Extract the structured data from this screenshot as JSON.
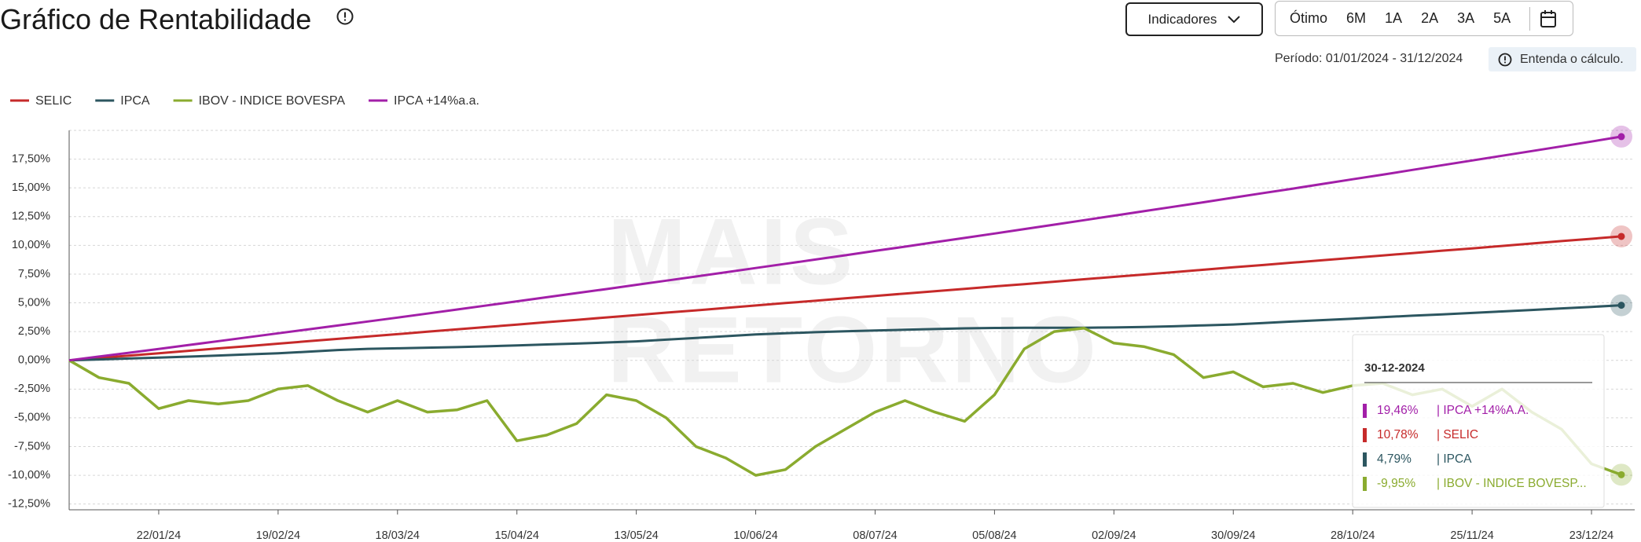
{
  "header": {
    "title": "Gráfico de Rentabilidade",
    "dropdown": "Indicadores",
    "periods": [
      "Ótimo",
      "6M",
      "1A",
      "2A",
      "3A",
      "5A"
    ],
    "period_range": "Período: 01/01/2024 - 31/12/2024",
    "help": "Entenda o cálculo."
  },
  "chart_data": {
    "type": "line",
    "watermark": [
      "MAIS",
      "RETORNO"
    ],
    "x": [
      "01/01/24",
      "08/01/24",
      "15/01/24",
      "22/01/24",
      "29/01/24",
      "05/02/24",
      "12/02/24",
      "19/02/24",
      "26/02/24",
      "04/03/24",
      "11/03/24",
      "18/03/24",
      "25/03/24",
      "01/04/24",
      "08/04/24",
      "15/04/24",
      "22/04/24",
      "29/04/24",
      "06/05/24",
      "13/05/24",
      "20/05/24",
      "27/05/24",
      "03/06/24",
      "10/06/24",
      "17/06/24",
      "24/06/24",
      "01/07/24",
      "08/07/24",
      "15/07/24",
      "22/07/24",
      "29/07/24",
      "05/08/24",
      "12/08/24",
      "19/08/24",
      "26/08/24",
      "02/09/24",
      "09/09/24",
      "16/09/24",
      "23/09/24",
      "30/09/24",
      "07/10/24",
      "14/10/24",
      "21/10/24",
      "28/10/24",
      "04/11/24",
      "11/11/24",
      "18/11/24",
      "25/11/24",
      "02/12/24",
      "09/12/24",
      "16/12/24",
      "23/12/24",
      "30/12/24"
    ],
    "xlim": [
      "01/01/24",
      "30/12/24"
    ],
    "xticks": [
      "22/01/24",
      "19/02/24",
      "18/03/24",
      "15/04/24",
      "13/05/24",
      "10/06/24",
      "08/07/24",
      "05/08/24",
      "02/09/24",
      "30/09/24",
      "28/10/24",
      "25/11/24",
      "23/12/24"
    ],
    "ylim": [
      -13,
      20
    ],
    "yticks": [
      {
        "value": 17.5,
        "label": "17,50%"
      },
      {
        "value": 15,
        "label": "15,00%"
      },
      {
        "value": 12.5,
        "label": "12,50%"
      },
      {
        "value": 10,
        "label": "10,00%"
      },
      {
        "value": 7.5,
        "label": "7,50%"
      },
      {
        "value": 5,
        "label": "5,00%"
      },
      {
        "value": 2.5,
        "label": "2,50%"
      },
      {
        "value": 0,
        "label": "0,00%"
      },
      {
        "value": -2.5,
        "label": "-2,50%"
      },
      {
        "value": -5,
        "label": "-5,00%"
      },
      {
        "value": -7.5,
        "label": "-7,50%"
      },
      {
        "value": -10,
        "label": "-10,00%"
      },
      {
        "value": -12.5,
        "label": "-12,50%"
      }
    ],
    "grid": true,
    "series": [
      {
        "name": "SELIC",
        "color": "#c62a2a",
        "values": [
          0,
          0.21,
          0.41,
          0.62,
          0.83,
          1.04,
          1.24,
          1.45,
          1.66,
          1.87,
          2.07,
          2.28,
          2.49,
          2.7,
          2.9,
          3.11,
          3.32,
          3.52,
          3.73,
          3.94,
          4.15,
          4.35,
          4.56,
          4.77,
          4.98,
          5.18,
          5.39,
          5.6,
          5.81,
          6.01,
          6.22,
          6.43,
          6.63,
          6.84,
          7.05,
          7.26,
          7.46,
          7.67,
          7.88,
          8.09,
          8.29,
          8.5,
          8.71,
          8.91,
          9.12,
          9.33,
          9.54,
          9.74,
          9.95,
          10.16,
          10.37,
          10.57,
          10.78
        ]
      },
      {
        "name": "IPCA",
        "color": "#2c5660",
        "values": [
          0,
          0.08,
          0.16,
          0.24,
          0.32,
          0.42,
          0.52,
          0.62,
          0.75,
          0.9,
          1.0,
          1.05,
          1.1,
          1.15,
          1.22,
          1.3,
          1.38,
          1.46,
          1.55,
          1.65,
          1.8,
          1.95,
          2.1,
          2.25,
          2.35,
          2.45,
          2.52,
          2.6,
          2.66,
          2.72,
          2.78,
          2.82,
          2.84,
          2.84,
          2.84,
          2.86,
          2.9,
          2.96,
          3.04,
          3.12,
          3.25,
          3.38,
          3.5,
          3.62,
          3.75,
          3.88,
          4.0,
          4.12,
          4.25,
          4.38,
          4.52,
          4.65,
          4.79
        ]
      },
      {
        "name": "IBOV - INDICE BOVESPA",
        "color": "#8aab2f",
        "values": [
          0,
          -1.5,
          -2.0,
          -4.2,
          -3.5,
          -3.8,
          -3.5,
          -2.5,
          -2.2,
          -3.5,
          -4.5,
          -3.5,
          -4.5,
          -4.3,
          -3.5,
          -7.0,
          -6.5,
          -5.5,
          -3.0,
          -3.5,
          -5.0,
          -7.5,
          -8.5,
          -10.0,
          -9.5,
          -7.5,
          -6.0,
          -4.5,
          -3.5,
          -4.5,
          -5.3,
          -3.0,
          1.0,
          2.5,
          2.8,
          1.5,
          1.2,
          0.5,
          -1.5,
          -1.0,
          -2.3,
          -2.0,
          -2.8,
          -2.2,
          -2.0,
          -3.0,
          -2.5,
          -4.0,
          -2.5,
          -4.5,
          -6.0,
          -9.0,
          -9.95
        ]
      },
      {
        "name": "IPCA +14%a.a.",
        "color": "#a21fa8",
        "values": [
          0,
          0.33,
          0.66,
          0.995,
          1.33,
          1.67,
          2.01,
          2.35,
          2.69,
          3.03,
          3.38,
          3.72,
          4.07,
          4.42,
          4.78,
          5.13,
          5.49,
          5.85,
          6.2,
          6.57,
          6.93,
          7.29,
          7.66,
          8.03,
          8.4,
          8.77,
          9.14,
          9.52,
          9.89,
          10.27,
          10.65,
          11.03,
          11.42,
          11.8,
          12.19,
          12.58,
          12.97,
          13.36,
          13.75,
          14.15,
          14.55,
          14.94,
          15.35,
          15.75,
          16.15,
          16.56,
          16.97,
          17.38,
          17.79,
          18.2,
          18.61,
          19.03,
          19.46
        ]
      }
    ],
    "tooltip": {
      "title": "30-12-2024",
      "entries": [
        {
          "color": "#a21fa8",
          "label": "19,46%",
          "name": "| IPCA +14%A.A."
        },
        {
          "color": "#c62a2a",
          "label": "10,78%",
          "name": "| SELIC"
        },
        {
          "color": "#2c5660",
          "label": "4,79%",
          "name": "| IPCA"
        },
        {
          "color": "#8aab2f",
          "label": "-9,95%",
          "name": "| IBOV - INDICE BOVESP..."
        }
      ]
    }
  }
}
